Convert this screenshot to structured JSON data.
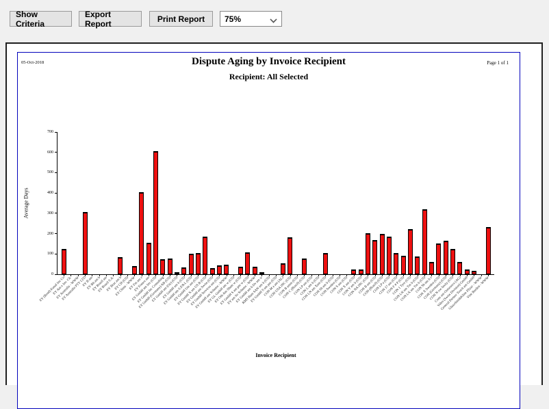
{
  "toolbar": {
    "show_criteria": "Show Criteria",
    "export_report": "Export Report",
    "print_report": "Print Report",
    "zoom_value": "75%"
  },
  "report": {
    "date": "05-Oct-2018",
    "page_label": "Page 1 of 1",
    "title": "Dispute Aging by Invoice Recipient",
    "subtitle": "Recipient: All Selected"
  },
  "chart_data": {
    "type": "bar",
    "title": "Dispute Aging by Invoice Recipient",
    "subtitle": "Recipient: All Selected",
    "xlabel": "Invoice Recipient",
    "ylabel": "Average Days",
    "ylim": [
      0,
      700
    ],
    "yticks": [
      0,
      100,
      200,
      300,
      400,
      500,
      600,
      700
    ],
    "bar_color": "#ee1111",
    "grid": false,
    "legend": "none",
    "categories": [
      "EY (Read) Kanal Inv Co",
      "EY Am e Inv. Ch.",
      "EY Australia - WWW",
      "EY Australia PTY LTD",
      "EY B am",
      "EY Bh am b",
      "EY Brazil am",
      "EY Brazil S.A.",
      "EY Braz am b",
      "EY CH (US)",
      "EY China - WWW",
      "EY Fm am e",
      "EY France am",
      "EY GmbH am Inv (US)",
      "EY GmbH Inc Consulting",
      "EY GmbH (Germany) AB (US)",
      "EY GmbH am (Oy) (US)",
      "EY GmbH am b (US)",
      "EY GmbH am S.P.R.L (US)",
      "EY GmbH Um am (US)",
      "EY GmbH X am US B (US)",
      "EY GmbH am Swiss (US)",
      "EY GmbH Services am (US)",
      "EY GmbH am Schams - WWW",
      "EY GL GmbH am w (US)",
      "EY Oth Am Sham w (US)",
      "EY GmbH S am pm w (US)",
      "EY am So Schams - WWW",
      "EY GmbH am b Dv am w",
      "RMS Ham SAN am b (US)",
      "EY GmbH S am pm (US)",
      "CON M a am (AL)",
      "CON USA INC (US)",
      "CON B amm (US)",
      "CON C (Brazil) (US)",
      "CON LP am (US)",
      "CON L am b (US)",
      "CON LN am Xam (US)",
      "CON Sh am b (US)",
      "CON Sweden (US)",
      "CON S am (US)",
      "CON X am (US)",
      "CON Y am b (US)",
      "CON NA INC (US)",
      "CON B am (US)",
      "CON (Brazil) (US)",
      "CON LP a (US)",
      "CON 17 am (US)",
      "CON F # P (US)",
      "CON 1 Tyre (US)",
      "CON LN am Tm b (US)",
      "CON LX am Tm b (US)",
      "CON Sh am b e",
      "CON X Sweden (US)",
      "CON (Germany) (US)",
      "CON N ow laxity (US)",
      "Cone am Outsource (AG)",
      "Vales (Swiss Division) GmbH",
      "General Partner Touch am GmbH",
      "GlaxoSmithKline Pfizer - WWW",
      "Vine Barden - WWW"
    ],
    "values": [
      125,
      0,
      0,
      307,
      0,
      0,
      0,
      0,
      83,
      0,
      41,
      405,
      154,
      606,
      73,
      77,
      7,
      34,
      102,
      104,
      185,
      30,
      43,
      47,
      0,
      38,
      107,
      38,
      8,
      0,
      0,
      54,
      182,
      0,
      77,
      0,
      0,
      104,
      0,
      0,
      0,
      25,
      22,
      202,
      168,
      199,
      185,
      103,
      92,
      223,
      86,
      320,
      62,
      151,
      166,
      123,
      62,
      23,
      16,
      0,
      232
    ]
  }
}
